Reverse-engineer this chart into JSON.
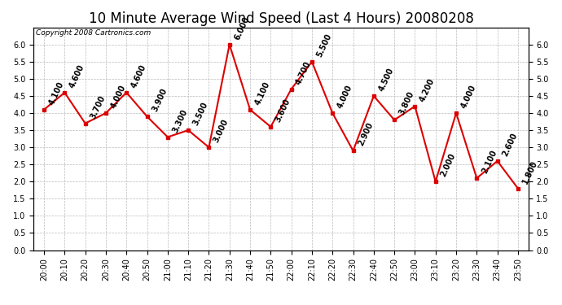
{
  "title": "10 Minute Average Wind Speed (Last 4 Hours) 20080208",
  "copyright": "Copyright 2008 Cartronics.com",
  "x_labels": [
    "20:00",
    "20:10",
    "20:20",
    "20:30",
    "20:40",
    "20:50",
    "21:00",
    "21:10",
    "21:20",
    "21:30",
    "21:40",
    "21:50",
    "22:00",
    "22:10",
    "22:20",
    "22:30",
    "22:40",
    "22:50",
    "23:00",
    "23:10",
    "23:20",
    "23:30",
    "23:40",
    "23:50"
  ],
  "y_values": [
    4.1,
    4.6,
    3.7,
    4.0,
    4.6,
    3.9,
    3.3,
    3.5,
    3.0,
    6.0,
    4.1,
    3.6,
    4.7,
    5.5,
    4.0,
    2.9,
    4.5,
    3.8,
    4.2,
    2.0,
    4.0,
    2.1,
    2.6,
    1.8
  ],
  "ylim": [
    0.0,
    6.5
  ],
  "yticks": [
    0.0,
    0.5,
    1.0,
    1.5,
    2.0,
    2.5,
    3.0,
    3.5,
    4.0,
    4.5,
    5.0,
    5.5,
    6.0
  ],
  "line_color": "#dd0000",
  "marker_color": "#dd0000",
  "bg_color": "#ffffff",
  "grid_color": "#bbbbbb",
  "title_fontsize": 12,
  "label_fontsize": 7,
  "annotation_fontsize": 7,
  "fig_width": 6.9,
  "fig_height": 3.75,
  "dpi": 100
}
